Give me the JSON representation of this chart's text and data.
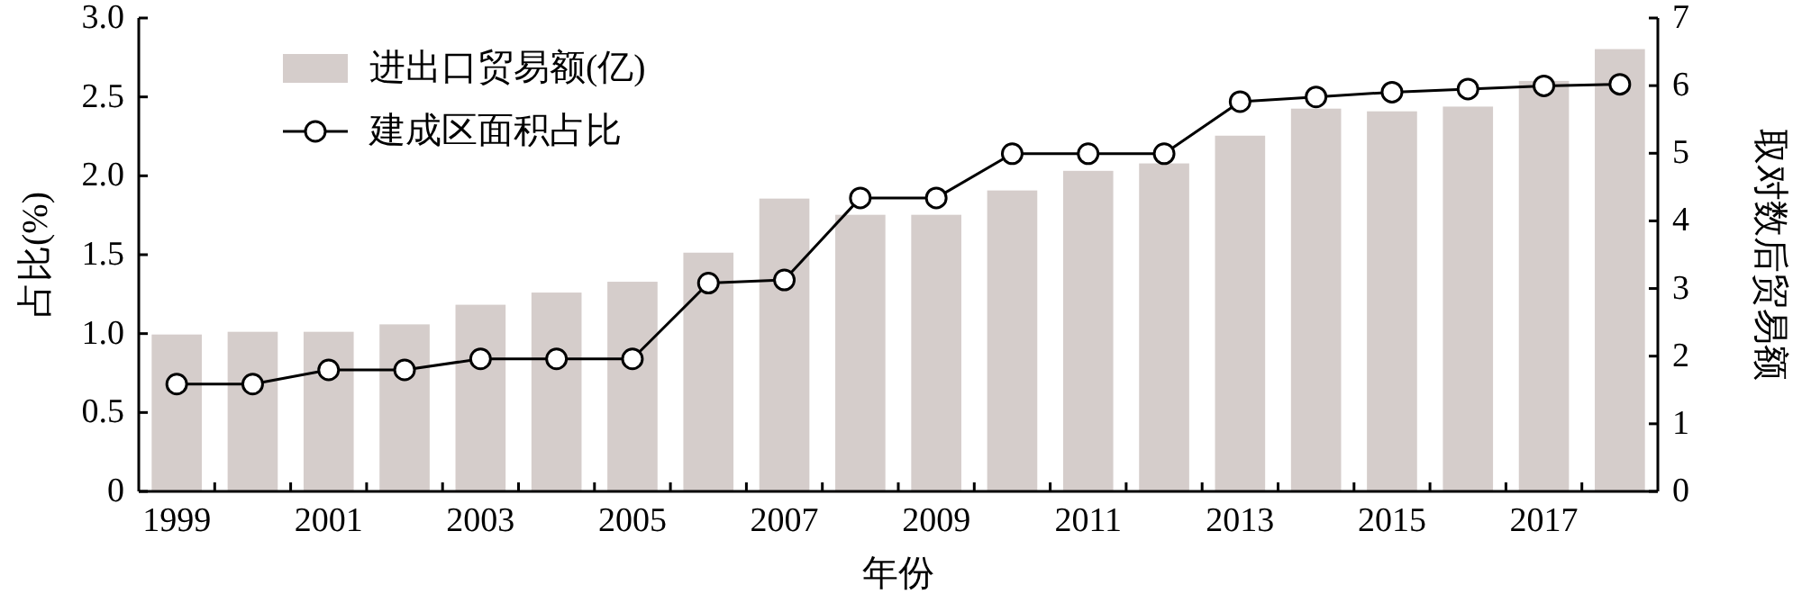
{
  "chart_data": {
    "type": "bar",
    "xlabel": "年份",
    "ylabel": "占比(%)",
    "y2label": "取对数后贸易额",
    "categories": [
      "1999",
      null,
      "2001",
      null,
      "2003",
      null,
      "2005",
      null,
      "2007",
      null,
      "2009",
      null,
      "2011",
      null,
      "2013",
      null,
      "2015",
      null,
      "2017",
      null
    ],
    "series": [
      {
        "name": "进出口贸易额(亿)",
        "axis": "y2",
        "color": "#d5cdcb",
        "values": [
          2.32,
          2.36,
          2.36,
          2.47,
          2.76,
          2.94,
          3.1,
          3.53,
          4.33,
          4.09,
          4.09,
          4.45,
          4.74,
          4.85,
          5.26,
          5.66,
          5.62,
          5.69,
          6.07,
          6.54
        ]
      },
      {
        "name": "建成区面积占比",
        "type": "line",
        "color": "#000000",
        "marker": "circle",
        "values": [
          0.68,
          0.68,
          0.77,
          0.77,
          0.84,
          0.84,
          0.84,
          1.32,
          1.34,
          1.86,
          1.86,
          2.14,
          2.14,
          2.14,
          2.47,
          2.5,
          2.53,
          2.55,
          2.57,
          2.58
        ]
      }
    ],
    "ylim": [
      0,
      3.0
    ],
    "yticks": [
      0,
      {
        "value": 0.5,
        "label": "0.5"
      },
      {
        "value": 1,
        "label": "1.0"
      },
      {
        "value": 1.5,
        "label": "1.5"
      },
      {
        "value": 2,
        "label": "2.0"
      },
      {
        "value": 2.5,
        "label": "2.5"
      },
      {
        "value": 3,
        "label": "3.0"
      }
    ],
    "y2lim": [
      0,
      7
    ],
    "y2ticks": [
      0,
      1,
      2,
      3,
      4,
      5,
      6,
      7
    ],
    "legend": "top left",
    "grid": false
  }
}
